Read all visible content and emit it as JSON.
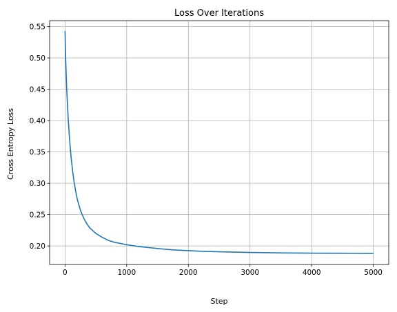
{
  "chart_data": {
    "type": "line",
    "title": "Loss Over Iterations",
    "xlabel": "Step",
    "ylabel": "Cross Entropy Loss",
    "xlim": [
      -250,
      5250
    ],
    "ylim": [
      0.1705,
      0.5595
    ],
    "xticks": [
      0,
      1000,
      2000,
      3000,
      4000,
      5000
    ],
    "yticks": [
      0.2,
      0.25,
      0.3,
      0.35,
      0.4,
      0.45,
      0.5,
      0.55
    ],
    "grid": true,
    "series": [
      {
        "color": "#1f77b4",
        "x": [
          0,
          10,
          25,
          50,
          75,
          100,
          125,
          150,
          175,
          200,
          250,
          300,
          350,
          400,
          500,
          600,
          700,
          800,
          900,
          1000,
          1200,
          1400,
          1600,
          1800,
          2000,
          2250,
          2500,
          2750,
          3000,
          3500,
          4000,
          4500,
          5000
        ],
        "y": [
          0.543,
          0.5,
          0.455,
          0.405,
          0.368,
          0.34,
          0.318,
          0.3,
          0.286,
          0.274,
          0.257,
          0.245,
          0.236,
          0.229,
          0.22,
          0.214,
          0.209,
          0.206,
          0.204,
          0.202,
          0.199,
          0.197,
          0.195,
          0.1935,
          0.1925,
          0.1915,
          0.1908,
          0.1902,
          0.1897,
          0.189,
          0.1886,
          0.1884,
          0.1882
        ]
      }
    ]
  }
}
